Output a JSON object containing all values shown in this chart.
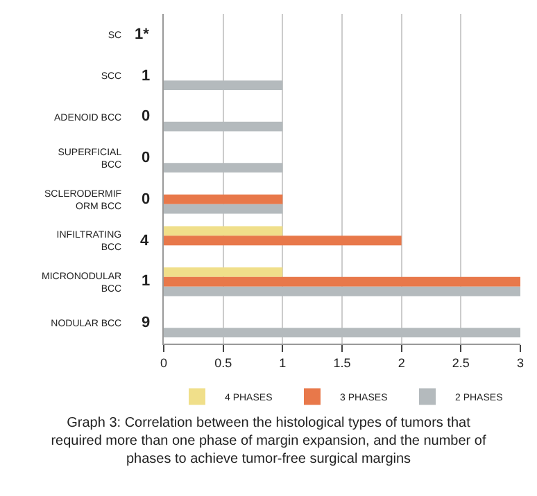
{
  "chart_data": {
    "type": "bar",
    "orientation": "horizontal",
    "title": "Graph 3: Correlation between the histological types of tumors that required more than one phase of margin expansion, and the number of phases to achieve tumor-free surgical margins",
    "categories": [
      "SC",
      "SCC",
      "ADENOID BCC",
      "SUPERFICIAL BCC",
      "SCLERODERMIFORM BCC",
      "INFILTRATING BCC",
      "MICRONODULAR BCC",
      "NODULAR BCC"
    ],
    "annotations": [
      "1*",
      "1",
      "0",
      "0",
      "0",
      "4",
      "1",
      "9"
    ],
    "series": [
      {
        "name": "4 PHASES",
        "color": "#f0df8a",
        "values": [
          0,
          0,
          0,
          0,
          0,
          1,
          1,
          0
        ]
      },
      {
        "name": "3 PHASES",
        "color": "#e8784a",
        "values": [
          0,
          0,
          0,
          0,
          1,
          2,
          3,
          0
        ]
      },
      {
        "name": "2 PHASES",
        "color": "#b4babd",
        "values": [
          0,
          1,
          1,
          1,
          1,
          0,
          3,
          3
        ]
      }
    ],
    "xlim": [
      0,
      3
    ],
    "xticks": [
      0,
      0.5,
      1,
      1.5,
      2,
      2.5,
      3
    ],
    "grid": "x",
    "legend": "bottom"
  }
}
